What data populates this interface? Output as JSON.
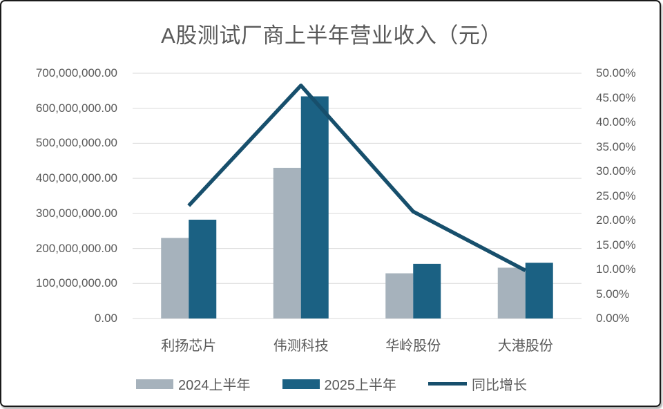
{
  "chart_data": {
    "type": "combo-bar-line",
    "title": "A股测试厂商上半年营业收入（元）",
    "categories": [
      "利扬芯片",
      "伟测科技",
      "华岭股份",
      "大港股份"
    ],
    "series": [
      {
        "name": "2024上半年",
        "type": "bar",
        "axis": "left",
        "color": "#A6B2BC",
        "values": [
          230000000,
          430000000,
          129000000,
          145000000
        ]
      },
      {
        "name": "2025上半年",
        "type": "bar",
        "axis": "left",
        "color": "#1B6183",
        "values": [
          282000000,
          634000000,
          156000000,
          159000000
        ]
      },
      {
        "name": "同比增长",
        "type": "line",
        "axis": "right",
        "color": "#174F6C",
        "values": [
          0.23,
          0.475,
          0.218,
          0.098
        ]
      }
    ],
    "left_axis": {
      "min": 0,
      "max": 700000000,
      "step": 100000000,
      "tick_labels": [
        "700,000,000.00",
        "600,000,000.00",
        "500,000,000.00",
        "400,000,000.00",
        "300,000,000.00",
        "200,000,000.00",
        "100,000,000.00",
        "0.00"
      ]
    },
    "right_axis": {
      "min": 0,
      "max": 0.5,
      "step": 0.05,
      "tick_labels": [
        "50.00%",
        "45.00%",
        "40.00%",
        "35.00%",
        "30.00%",
        "25.00%",
        "20.00%",
        "15.00%",
        "10.00%",
        "5.00%",
        "0.00%"
      ]
    },
    "grid": true,
    "legend_position": "bottom",
    "colors": {
      "text": "#595959",
      "gridline": "#D9D9D9",
      "background": "#FFFFFF",
      "frame_border": "#1A1A1A"
    }
  }
}
